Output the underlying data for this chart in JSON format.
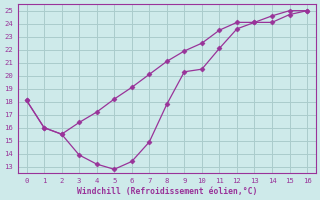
{
  "curve1_x": [
    0,
    1,
    2,
    3,
    4,
    5,
    6,
    7,
    8,
    9,
    10,
    11,
    12,
    13,
    14,
    15,
    16
  ],
  "curve1_y": [
    18.1,
    16.0,
    15.5,
    13.9,
    13.2,
    12.8,
    13.4,
    14.9,
    17.8,
    20.3,
    20.5,
    22.1,
    23.6,
    24.1,
    24.1,
    24.7,
    25.0
  ],
  "curve2_x": [
    0,
    1,
    2,
    3,
    4,
    5,
    6,
    7,
    8,
    9,
    10,
    11,
    12,
    13,
    14,
    15,
    16
  ],
  "curve2_y": [
    18.1,
    16.0,
    15.5,
    16.4,
    17.2,
    18.2,
    19.1,
    20.1,
    21.1,
    21.9,
    22.5,
    23.5,
    24.1,
    24.1,
    24.6,
    25.0,
    25.0
  ],
  "color": "#993399",
  "bg_color": "#ceeaea",
  "grid_color": "#aacccc",
  "xlabel": "Windchill (Refroidissement éolien,°C)",
  "xlim": [
    -0.5,
    16.5
  ],
  "ylim": [
    12.5,
    25.5
  ],
  "xticks": [
    0,
    1,
    2,
    3,
    4,
    5,
    6,
    7,
    8,
    9,
    10,
    11,
    12,
    13,
    14,
    15,
    16
  ],
  "yticks": [
    13,
    14,
    15,
    16,
    17,
    18,
    19,
    20,
    21,
    22,
    23,
    24,
    25
  ]
}
